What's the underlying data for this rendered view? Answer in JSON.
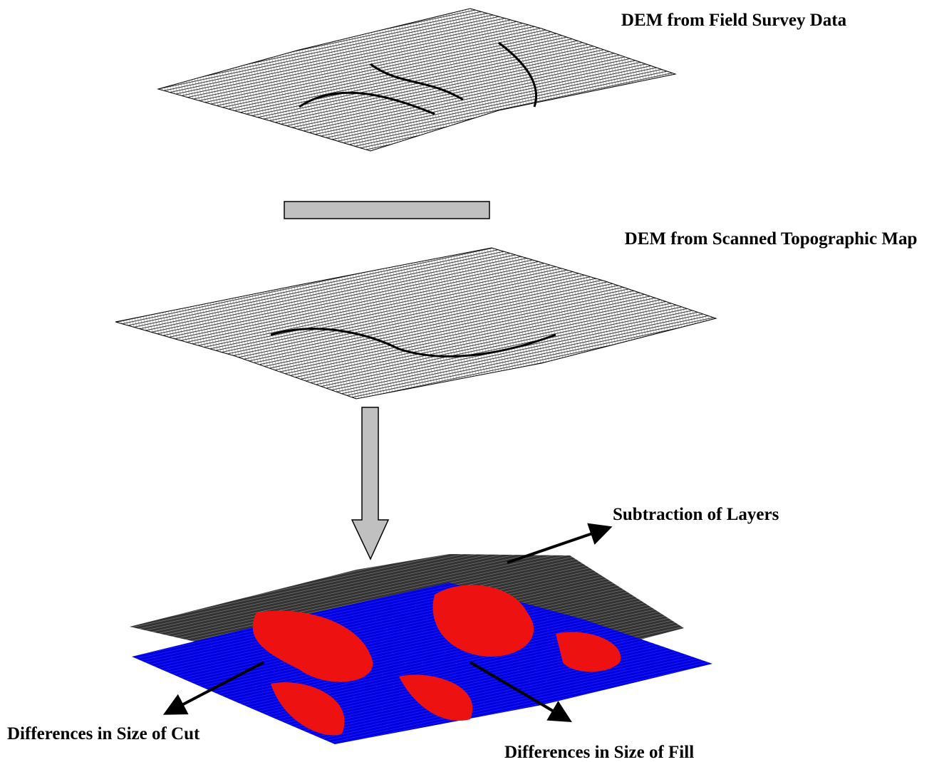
{
  "labels": {
    "field_survey": "DEM from Field Survey Data",
    "scanned_map": "DEM from Scanned Topographic Map",
    "subtraction": "Subtraction of Layers",
    "cut": "Differences in Size of Cut",
    "fill": "Differences in Size of Fill"
  }
}
